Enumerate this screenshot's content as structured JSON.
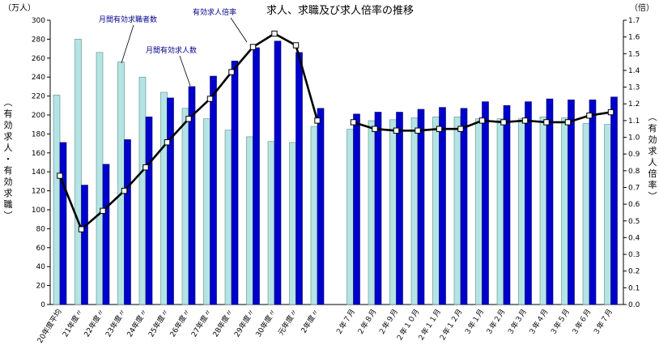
{
  "chart_data": {
    "type": "bar",
    "title": "求人、求職及び求人倍率の推移",
    "left_unit": "（万人）",
    "right_unit": "（倍）",
    "left_axis_label": "（有効求人・有効求職）",
    "right_axis_label": "（有効求人倍率）",
    "left_ylim": [
      0,
      300
    ],
    "left_ticks": [
      0,
      20,
      40,
      60,
      80,
      100,
      120,
      140,
      160,
      180,
      200,
      220,
      240,
      260,
      280,
      300
    ],
    "right_ylim": [
      0.0,
      1.7
    ],
    "right_ticks": [
      "0.0",
      "0.1",
      "0.2",
      "0.3",
      "0.4",
      "0.5",
      "0.6",
      "0.7",
      "0.8",
      "0.9",
      "1.0",
      "1.1",
      "1.2",
      "1.3",
      "1.4",
      "1.5",
      "1.6",
      "1.7"
    ],
    "gridlines": false,
    "categories_group1": [
      "20年度平均",
      "21年度〃",
      "22年度〃",
      "23年度〃",
      "24年度〃",
      "25年度〃",
      "26年度〃",
      "27年度〃",
      "28年度〃",
      "29年度〃",
      "30年度〃",
      "元年度〃",
      "2年度〃"
    ],
    "categories_group2": [
      "２年７月",
      "２年８月",
      "２年９月",
      "２年１０月",
      "２年１１月",
      "２年１２月",
      "３年１月",
      "３年２月",
      "３年３月",
      "３年４月",
      "３年５月",
      "３年６月",
      "３年７月"
    ],
    "series": [
      {
        "name": "月間有効求職者数",
        "color": "#b4e4e4",
        "axis": "left",
        "values_group1": [
          221,
          280,
          266,
          256,
          240,
          224,
          207,
          196,
          184,
          177,
          172,
          171,
          188
        ],
        "values_group2": [
          185,
          194,
          195,
          197,
          198,
          198,
          196,
          196,
          196,
          198,
          197,
          191,
          190
        ]
      },
      {
        "name": "月間有効求人数",
        "color": "#0000cc",
        "axis": "left",
        "values_group1": [
          171,
          126,
          148,
          174,
          198,
          218,
          230,
          241,
          257,
          271,
          278,
          266,
          207
        ],
        "values_group2": [
          201,
          203,
          203,
          206,
          208,
          207,
          214,
          210,
          214,
          217,
          216,
          216,
          219
        ]
      },
      {
        "name": "有効求人倍率",
        "color": "#000000",
        "axis": "right",
        "values_group1": [
          0.77,
          0.45,
          0.56,
          0.68,
          0.82,
          0.97,
          1.11,
          1.23,
          1.39,
          1.54,
          1.62,
          1.55,
          1.1
        ],
        "values_group2": [
          1.09,
          1.05,
          1.04,
          1.04,
          1.05,
          1.05,
          1.1,
          1.09,
          1.1,
          1.09,
          1.09,
          1.13,
          1.15
        ]
      }
    ],
    "annotations": [
      "月間有効求職者数",
      "有効求人倍率",
      "月間有効求人数"
    ]
  }
}
